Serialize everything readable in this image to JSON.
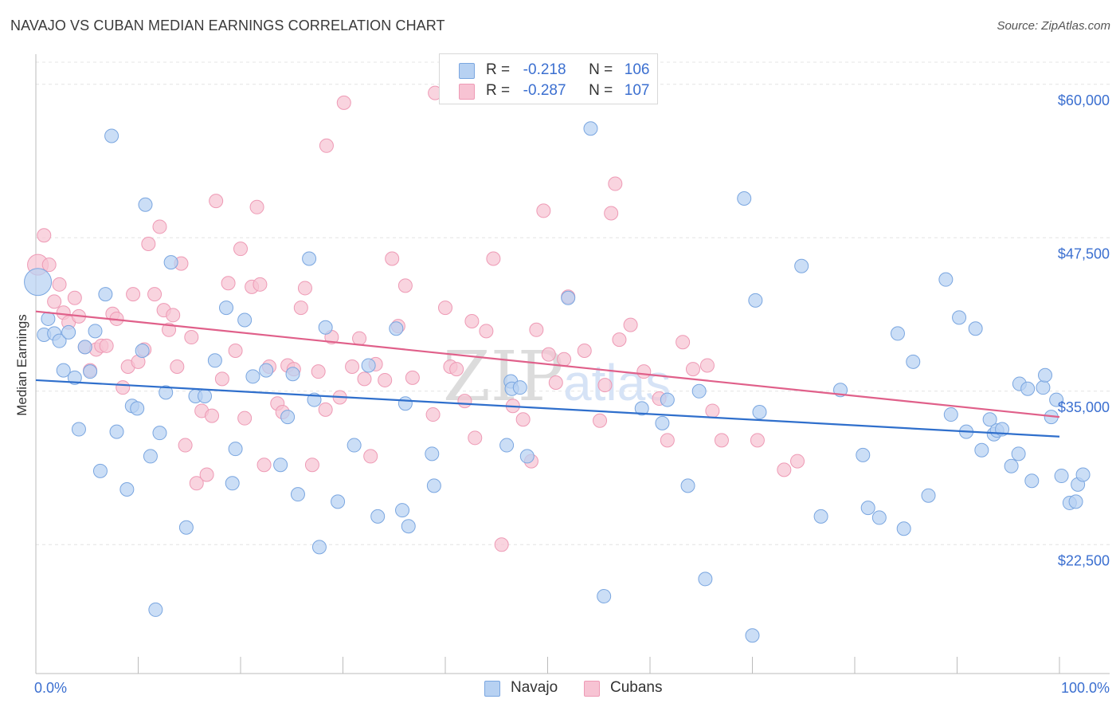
{
  "header": {
    "title": "NAVAJO VS CUBAN MEDIAN EARNINGS CORRELATION CHART",
    "source": "Source: ZipAtlas.com"
  },
  "legend": {
    "navajo": {
      "r_label": "R =",
      "r_value": "-0.218",
      "n_label": "N =",
      "n_value": "106"
    },
    "cubans": {
      "r_label": "R =",
      "r_value": "-0.287",
      "n_label": "N =",
      "n_value": "107"
    }
  },
  "bottom_legend": {
    "navajo": "Navajo",
    "cubans": "Cubans"
  },
  "watermark": {
    "zip": "ZIP",
    "atlas": "atlas"
  },
  "colors": {
    "navajo_fill": "#b7d1f2",
    "navajo_stroke": "#7aa6e0",
    "navajo_line": "#2f6fcc",
    "cubans_fill": "#f7c3d3",
    "cubans_stroke": "#ee9ab5",
    "cubans_line": "#e0608a",
    "tick_label": "#3b6fd0",
    "grid": "#e4e4e4"
  },
  "chart_data": {
    "type": "scatter",
    "title": "NAVAJO VS CUBAN MEDIAN EARNINGS CORRELATION CHART",
    "xlabel": "",
    "ylabel": "Median Earnings",
    "xlim": [
      0,
      100
    ],
    "ylim": [
      12000,
      62000
    ],
    "x_tick_labels": [
      "0.0%",
      "100.0%"
    ],
    "y_ticks": [
      22500,
      35000,
      47500,
      60000
    ],
    "y_tick_labels": [
      "$22,500",
      "$35,000",
      "$47,500",
      "$60,000"
    ],
    "grid": true,
    "legend_position": "top-center",
    "series": [
      {
        "name": "Navajo",
        "r": -0.218,
        "n": 106,
        "trend": {
          "x": [
            0,
            100
          ],
          "y": [
            35900,
            31300
          ]
        },
        "points": [
          [
            0.2,
            43900
          ],
          [
            0.8,
            39600
          ],
          [
            1.2,
            40900
          ],
          [
            1.8,
            39700
          ],
          [
            2.3,
            39100
          ],
          [
            2.7,
            36700
          ],
          [
            3.2,
            39800
          ],
          [
            3.8,
            36100
          ],
          [
            4.2,
            31900
          ],
          [
            4.8,
            38600
          ],
          [
            5.3,
            36600
          ],
          [
            5.8,
            39900
          ],
          [
            6.3,
            28500
          ],
          [
            6.8,
            42900
          ],
          [
            7.4,
            55800
          ],
          [
            7.9,
            31700
          ],
          [
            8.9,
            27000
          ],
          [
            9.4,
            33800
          ],
          [
            9.9,
            33600
          ],
          [
            10.4,
            38300
          ],
          [
            10.7,
            50200
          ],
          [
            11.2,
            29700
          ],
          [
            11.7,
            17200
          ],
          [
            12.1,
            31600
          ],
          [
            12.7,
            34900
          ],
          [
            13.2,
            45500
          ],
          [
            14.7,
            23900
          ],
          [
            15.6,
            34600
          ],
          [
            16.5,
            34600
          ],
          [
            17.5,
            37500
          ],
          [
            18.6,
            41800
          ],
          [
            19.2,
            27500
          ],
          [
            19.5,
            30300
          ],
          [
            20.4,
            40800
          ],
          [
            21.2,
            36200
          ],
          [
            22.5,
            36700
          ],
          [
            23.9,
            29000
          ],
          [
            24.6,
            32900
          ],
          [
            25.1,
            36400
          ],
          [
            25.6,
            26600
          ],
          [
            26.7,
            45800
          ],
          [
            27.2,
            34300
          ],
          [
            27.7,
            22300
          ],
          [
            28.3,
            40200
          ],
          [
            29.5,
            26000
          ],
          [
            31.1,
            30600
          ],
          [
            32.5,
            37100
          ],
          [
            33.4,
            24800
          ],
          [
            35.2,
            40100
          ],
          [
            35.8,
            25300
          ],
          [
            36.1,
            34000
          ],
          [
            36.4,
            24000
          ],
          [
            38.7,
            29900
          ],
          [
            38.9,
            27300
          ],
          [
            46.0,
            30600
          ],
          [
            46.4,
            35800
          ],
          [
            46.5,
            35200
          ],
          [
            48.0,
            29700
          ],
          [
            52.0,
            42600
          ],
          [
            54.2,
            56400
          ],
          [
            59.2,
            33600
          ],
          [
            61.2,
            32400
          ],
          [
            61.7,
            34300
          ],
          [
            63.7,
            27300
          ],
          [
            64.8,
            35000
          ],
          [
            65.4,
            19700
          ],
          [
            69.2,
            50700
          ],
          [
            70.3,
            42400
          ],
          [
            70.7,
            33300
          ],
          [
            74.8,
            45200
          ],
          [
            76.7,
            24800
          ],
          [
            78.6,
            35100
          ],
          [
            80.8,
            29800
          ],
          [
            81.3,
            25500
          ],
          [
            82.4,
            24700
          ],
          [
            84.2,
            39700
          ],
          [
            84.8,
            23800
          ],
          [
            85.7,
            37400
          ],
          [
            87.2,
            26500
          ],
          [
            88.9,
            44100
          ],
          [
            89.4,
            33100
          ],
          [
            90.2,
            41000
          ],
          [
            90.9,
            31700
          ],
          [
            91.8,
            40100
          ],
          [
            92.4,
            30200
          ],
          [
            93.2,
            32700
          ],
          [
            93.6,
            31500
          ],
          [
            93.9,
            31800
          ],
          [
            94.4,
            31900
          ],
          [
            95.3,
            28900
          ],
          [
            96.0,
            29900
          ],
          [
            96.1,
            35600
          ],
          [
            96.9,
            35200
          ],
          [
            97.3,
            27700
          ],
          [
            98.4,
            35300
          ],
          [
            98.6,
            36300
          ],
          [
            99.2,
            32900
          ],
          [
            99.7,
            34300
          ],
          [
            100.2,
            28100
          ],
          [
            101.0,
            25900
          ],
          [
            101.6,
            26000
          ],
          [
            101.8,
            27400
          ],
          [
            102.3,
            28200
          ],
          [
            70.0,
            15100
          ],
          [
            55.5,
            18300
          ],
          [
            47.3,
            35300
          ]
        ]
      },
      {
        "name": "Cubans",
        "r": -0.287,
        "n": 107,
        "trend": {
          "x": [
            0,
            100
          ],
          "y": [
            41500,
            32900
          ]
        },
        "points": [
          [
            0.2,
            45300
          ],
          [
            0.8,
            47700
          ],
          [
            1.3,
            45300
          ],
          [
            1.8,
            42300
          ],
          [
            2.3,
            43700
          ],
          [
            2.7,
            41400
          ],
          [
            3.2,
            40600
          ],
          [
            3.8,
            42600
          ],
          [
            4.2,
            41100
          ],
          [
            4.8,
            38600
          ],
          [
            5.3,
            36700
          ],
          [
            5.9,
            38400
          ],
          [
            6.4,
            38700
          ],
          [
            6.9,
            38700
          ],
          [
            7.5,
            41300
          ],
          [
            7.9,
            40900
          ],
          [
            8.5,
            35300
          ],
          [
            9.0,
            37000
          ],
          [
            9.5,
            42900
          ],
          [
            10.0,
            37400
          ],
          [
            10.6,
            38400
          ],
          [
            11.0,
            47000
          ],
          [
            11.6,
            42900
          ],
          [
            12.1,
            48400
          ],
          [
            12.5,
            41600
          ],
          [
            13.0,
            40000
          ],
          [
            13.4,
            41200
          ],
          [
            13.8,
            37000
          ],
          [
            14.2,
            45400
          ],
          [
            14.6,
            30600
          ],
          [
            15.2,
            39400
          ],
          [
            15.7,
            27500
          ],
          [
            16.2,
            33400
          ],
          [
            16.7,
            28200
          ],
          [
            17.2,
            33000
          ],
          [
            17.6,
            50500
          ],
          [
            18.2,
            36000
          ],
          [
            18.8,
            43800
          ],
          [
            19.5,
            38300
          ],
          [
            20.0,
            46600
          ],
          [
            20.4,
            32800
          ],
          [
            21.1,
            43500
          ],
          [
            21.6,
            50000
          ],
          [
            21.9,
            43700
          ],
          [
            22.3,
            29000
          ],
          [
            22.8,
            37000
          ],
          [
            23.6,
            34000
          ],
          [
            24.1,
            33300
          ],
          [
            24.6,
            37100
          ],
          [
            25.2,
            36800
          ],
          [
            25.9,
            41800
          ],
          [
            26.3,
            43400
          ],
          [
            27.0,
            29000
          ],
          [
            27.6,
            36600
          ],
          [
            28.3,
            33500
          ],
          [
            28.4,
            55000
          ],
          [
            28.9,
            39400
          ],
          [
            29.7,
            34500
          ],
          [
            30.1,
            58500
          ],
          [
            30.9,
            37000
          ],
          [
            31.6,
            39300
          ],
          [
            32.1,
            36000
          ],
          [
            32.7,
            29700
          ],
          [
            33.2,
            37200
          ],
          [
            34.1,
            35900
          ],
          [
            34.8,
            45800
          ],
          [
            35.4,
            40300
          ],
          [
            36.1,
            43600
          ],
          [
            36.8,
            36100
          ],
          [
            38.8,
            33100
          ],
          [
            39.0,
            59300
          ],
          [
            40.0,
            41800
          ],
          [
            40.5,
            37000
          ],
          [
            41.1,
            36800
          ],
          [
            41.9,
            34200
          ],
          [
            42.6,
            40700
          ],
          [
            42.9,
            31200
          ],
          [
            44.0,
            39900
          ],
          [
            44.7,
            45800
          ],
          [
            45.5,
            22500
          ],
          [
            46.6,
            33800
          ],
          [
            47.6,
            32700
          ],
          [
            48.4,
            29300
          ],
          [
            48.9,
            40000
          ],
          [
            49.6,
            49700
          ],
          [
            50.1,
            38000
          ],
          [
            50.8,
            35700
          ],
          [
            51.6,
            37600
          ],
          [
            52.0,
            42700
          ],
          [
            53.6,
            38300
          ],
          [
            55.1,
            32600
          ],
          [
            55.6,
            35500
          ],
          [
            56.2,
            49500
          ],
          [
            56.6,
            51900
          ],
          [
            57.0,
            39200
          ],
          [
            58.1,
            40400
          ],
          [
            59.4,
            36600
          ],
          [
            60.9,
            34400
          ],
          [
            61.7,
            31000
          ],
          [
            63.2,
            39000
          ],
          [
            64.2,
            36800
          ],
          [
            65.6,
            37100
          ],
          [
            66.1,
            33400
          ],
          [
            67.0,
            31000
          ],
          [
            70.5,
            31000
          ],
          [
            73.1,
            28600
          ],
          [
            74.4,
            29300
          ]
        ]
      }
    ]
  }
}
